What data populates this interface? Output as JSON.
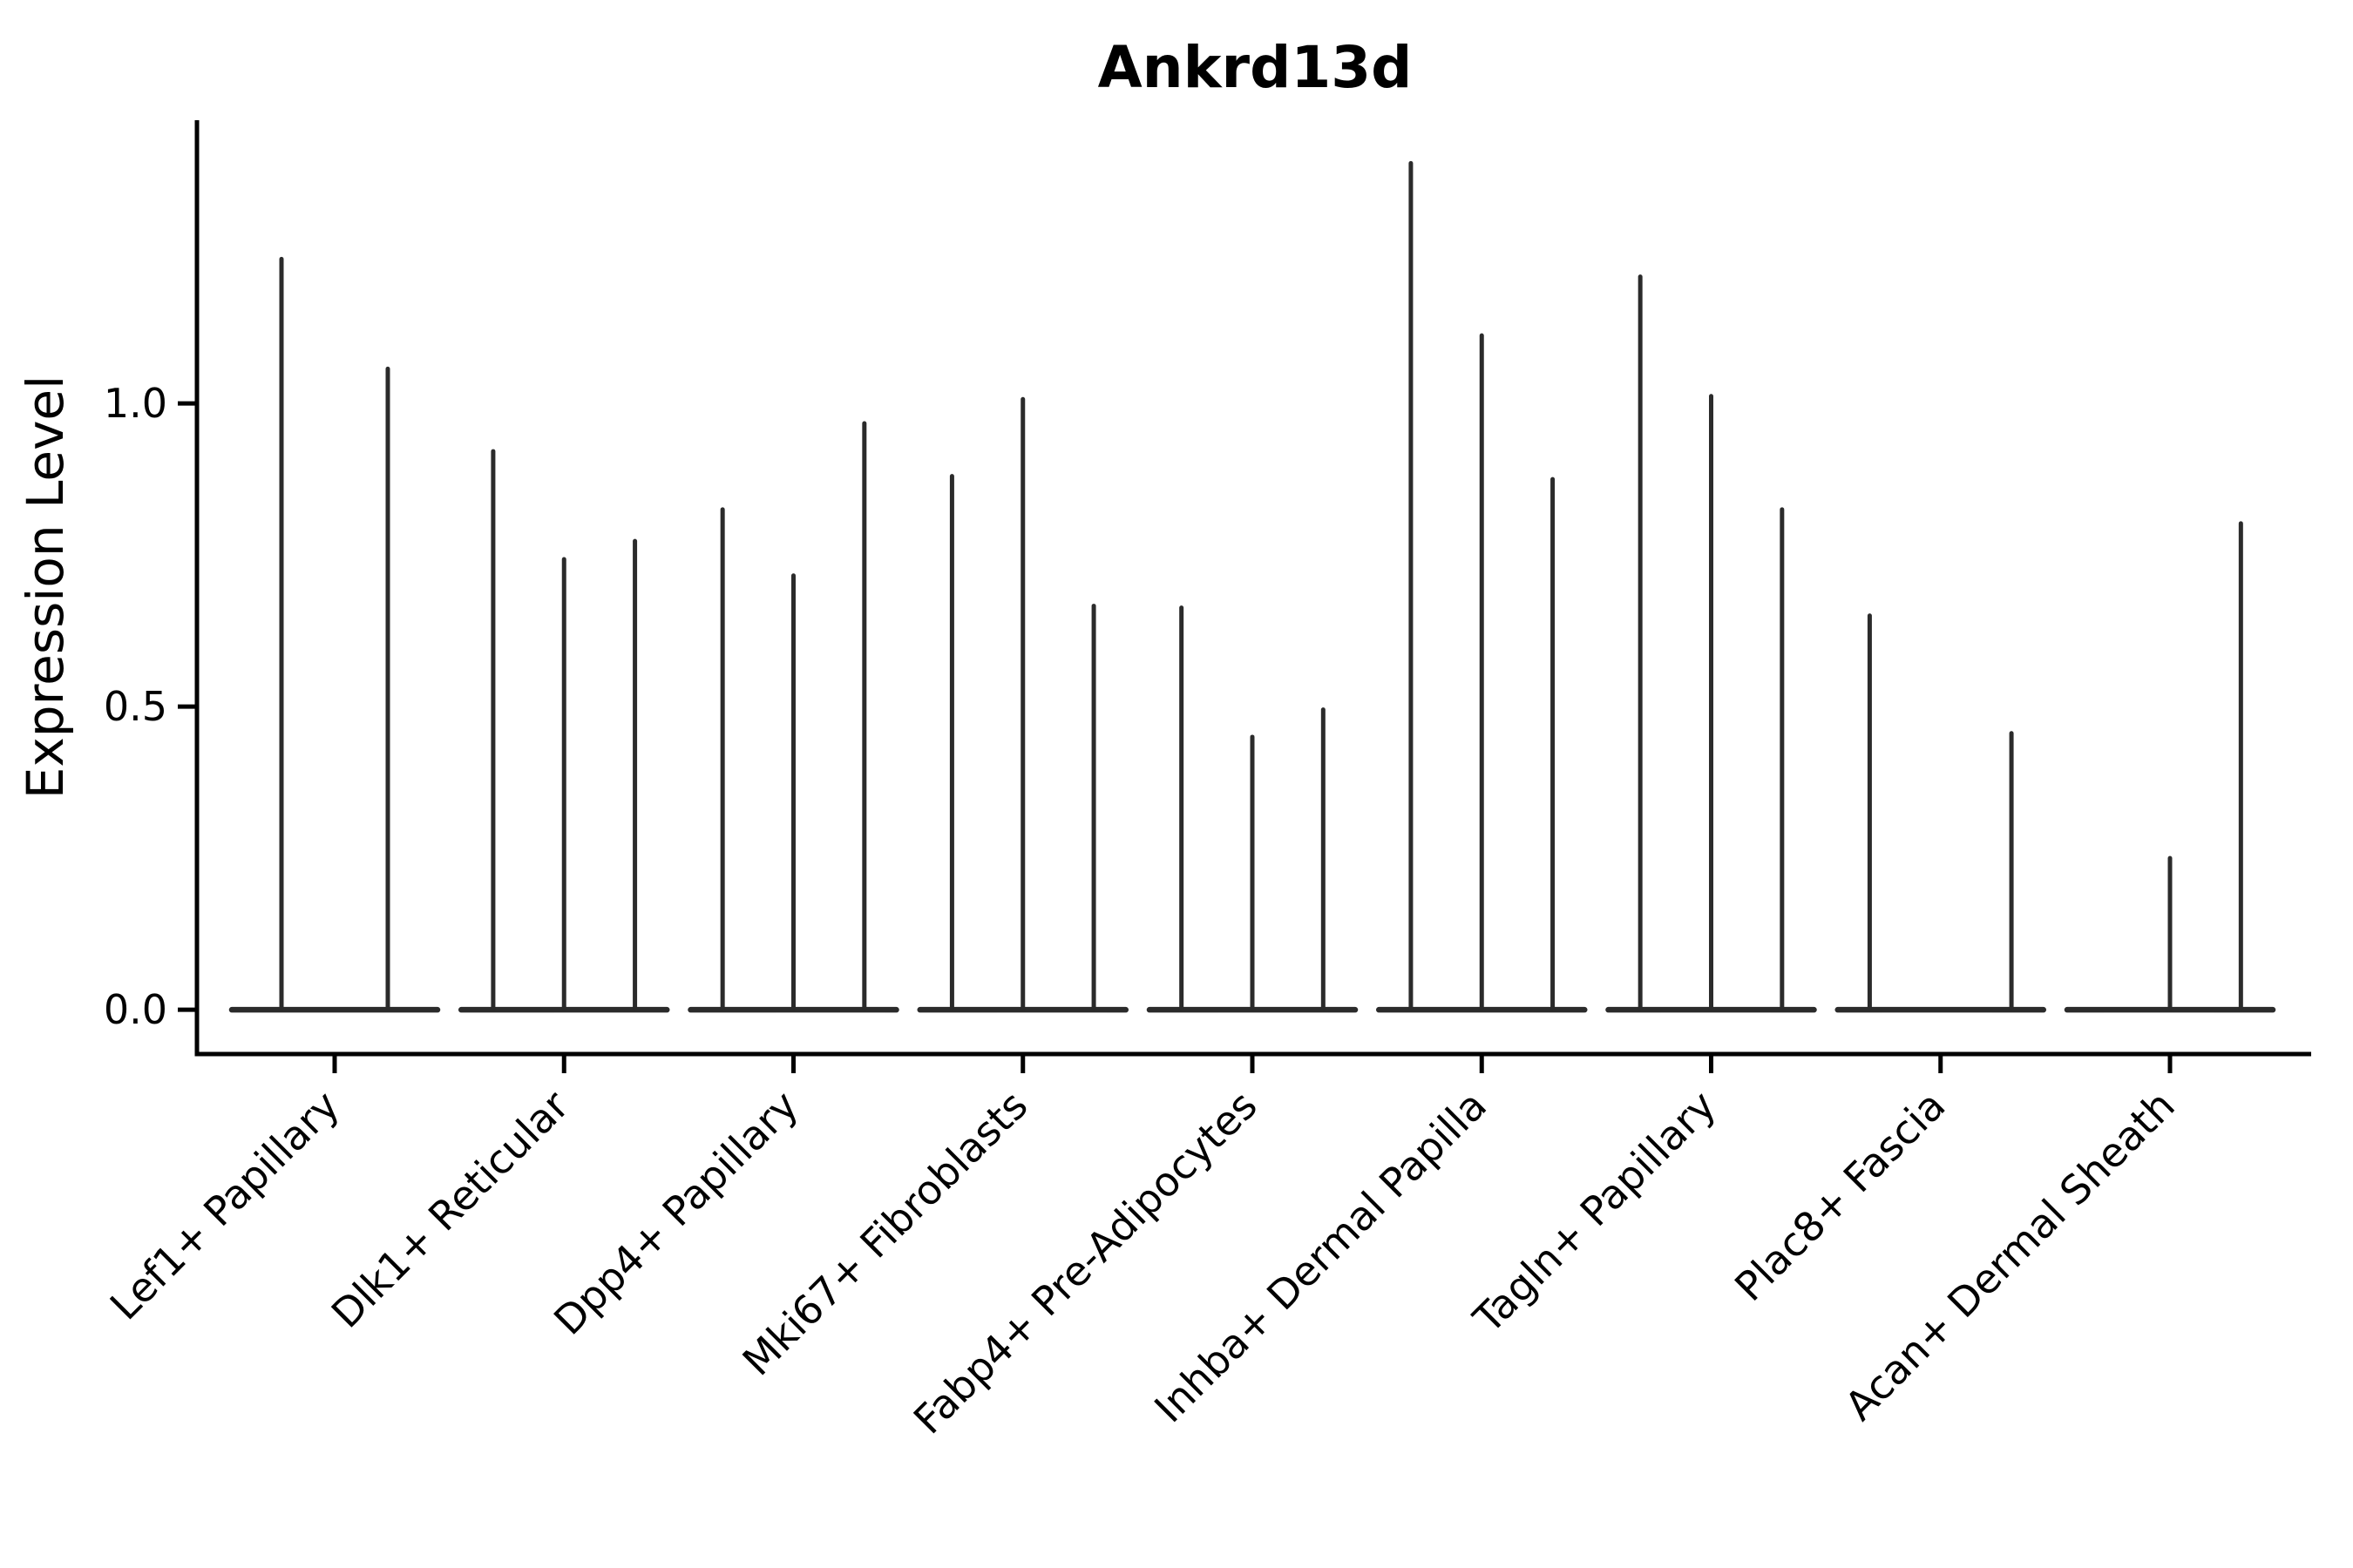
{
  "figure": {
    "background": "#ffffff"
  },
  "chart_data": {
    "type": "violin",
    "title": "Ankrd13d",
    "xlabel": "",
    "ylabel": "Expression Level",
    "ytick_labels": [
      "0.0",
      "0.5",
      "1.0"
    ],
    "ytick_values": [
      0.0,
      0.5,
      1.0
    ],
    "ylim": [
      -0.073,
      1.467
    ],
    "grid": false,
    "legend": null,
    "line_color": "#2b2b2b",
    "spine_color": "#000000",
    "label_rotation_deg": 45,
    "note": "Each category shows thin violins whose mass sits at 0 (flat baseline blob) with a hair-thin spike rising to the maximum expression value; violins with max 0 show baseline only.",
    "categories": [
      "Lef1+ Papillary",
      "Dlk1+ Reticular",
      "Dpp4+ Papillary",
      "Mki67+ Fibroblasts",
      "Fabp4+ Pre-Adipocytes",
      "Inhba+ Dermal Papilla",
      "Tagln+ Papillary",
      "Plac8+ Fascia",
      "Acan+ Dermal Sheath"
    ],
    "groups": [
      {
        "label": "Lef1+ Papillary",
        "violin_max_values": [
          1.238,
          1.057
        ]
      },
      {
        "label": "Dlk1+ Reticular",
        "violin_max_values": [
          0.921,
          0.743,
          0.773
        ]
      },
      {
        "label": "Dpp4+ Papillary",
        "violin_max_values": [
          0.825,
          0.716,
          0.967
        ]
      },
      {
        "label": "Mki67+ Fibroblasts",
        "violin_max_values": [
          0.88,
          1.007,
          0.666
        ]
      },
      {
        "label": "Fabp4+ Pre-Adipocytes",
        "violin_max_values": [
          0.663,
          0.45,
          0.495
        ]
      },
      {
        "label": "Inhba+ Dermal Papilla",
        "violin_max_values": [
          1.396,
          1.112,
          0.875
        ]
      },
      {
        "label": "Tagln+ Papillary",
        "violin_max_values": [
          1.209,
          1.012,
          0.825
        ]
      },
      {
        "label": "Plac8+ Fascia",
        "violin_max_values": [
          0.65,
          0.0,
          0.456
        ]
      },
      {
        "label": "Acan+ Dermal Sheath",
        "violin_max_values": [
          0.0,
          0.25,
          0.802
        ]
      }
    ]
  }
}
